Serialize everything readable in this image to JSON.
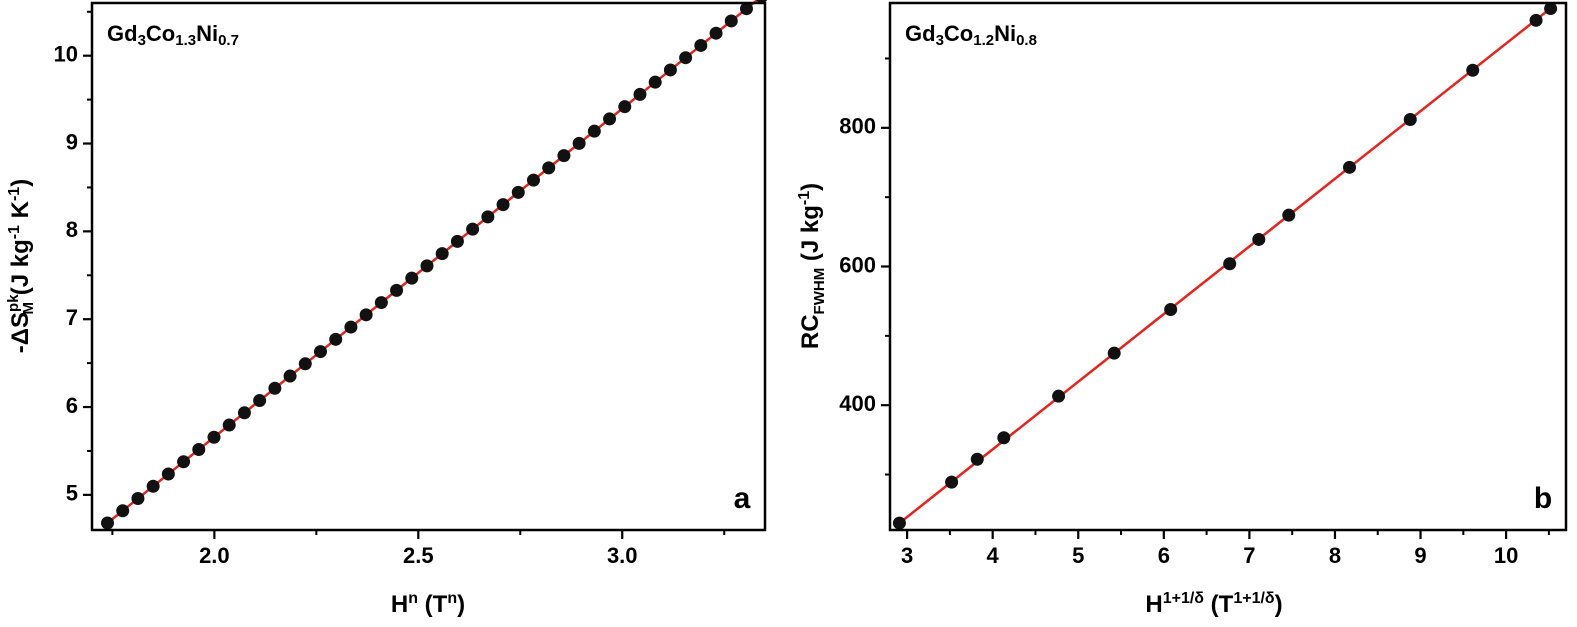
{
  "chart_data": [
    {
      "type": "scatter",
      "panel_label": "a",
      "sample": {
        "main": "Gd",
        "s1": "3",
        "m2": "Co",
        "s2": "1.3",
        "m3": "Ni",
        "s3": "0.7"
      },
      "xlabel": {
        "base": "H",
        "sup": "n",
        "unit_open": " (T",
        "unit_sup": "n",
        "unit_close": ")"
      },
      "ylabel": {
        "prefix": "-ΔS",
        "sup": "pk",
        "sub": "M",
        "unit1": " (J kg",
        "unit_sup1": "-1",
        "unit2": " K",
        "unit_sup2": "-1",
        "unit3": ")"
      },
      "xlim": [
        1.7,
        3.35
      ],
      "ylim": [
        4.6,
        10.6
      ],
      "xticks": [
        2.0,
        2.5,
        3.0
      ],
      "xtick_labels": [
        "2.0",
        "2.5",
        "3.0"
      ],
      "xminor": [
        1.75,
        2.25,
        2.75,
        3.25
      ],
      "yticks": [
        5,
        6,
        7,
        8,
        9,
        10
      ],
      "ytick_labels": [
        "5",
        "6",
        "7",
        "8",
        "9",
        "10"
      ],
      "yminor": [
        4.5,
        5.5,
        6.5,
        7.5,
        8.5,
        9.5,
        10.5
      ],
      "x_start": 1.738,
      "x_step": 0.0373,
      "n_points": 44,
      "fit": {
        "slope": 3.7375,
        "intercept": -1.816,
        "color": "#e8221c"
      },
      "marker_color": "#111111",
      "grid": false
    },
    {
      "type": "scatter",
      "panel_label": "b",
      "sample": {
        "main": "Gd",
        "s1": "3",
        "m2": "Co",
        "s2": "1.2",
        "m3": "Ni",
        "s3": "0.8"
      },
      "xlabel": {
        "base": "H",
        "sup": "1+1/δ",
        "unit_open": " (T",
        "unit_sup": "1+1/δ",
        "unit_close": ")"
      },
      "ylabel": {
        "base": "RC",
        "sub": "FWHM",
        "unit": " (J kg",
        "unit_sup": "-1",
        "unit_close": ")"
      },
      "xlim": [
        2.8,
        10.7
      ],
      "ylim": [
        220,
        980
      ],
      "xticks": [
        3,
        4,
        5,
        6,
        7,
        8,
        9,
        10
      ],
      "xtick_labels": [
        "3",
        "4",
        "5",
        "6",
        "7",
        "8",
        "9",
        "10"
      ],
      "xminor": [
        3.5,
        4.5,
        5.5,
        6.5,
        7.5,
        8.5,
        9.5,
        10.5
      ],
      "yticks": [
        400,
        600,
        800
      ],
      "ytick_labels": [
        "400",
        "600",
        "800"
      ],
      "yminor": [
        300,
        500,
        700,
        900
      ],
      "x": [
        2.91,
        3.52,
        3.82,
        4.13,
        4.77,
        5.42,
        6.08,
        6.77,
        7.11,
        7.46,
        8.17,
        8.88,
        9.61,
        10.35,
        10.52
      ],
      "y": [
        230,
        289,
        322,
        353,
        413,
        475,
        538,
        604,
        639,
        674,
        743,
        812,
        883,
        955,
        972
      ],
      "fit": {
        "slope": 97.55,
        "intercept": -53.9,
        "color": "#e8221c"
      },
      "marker_color": "#111111",
      "grid": false
    }
  ]
}
